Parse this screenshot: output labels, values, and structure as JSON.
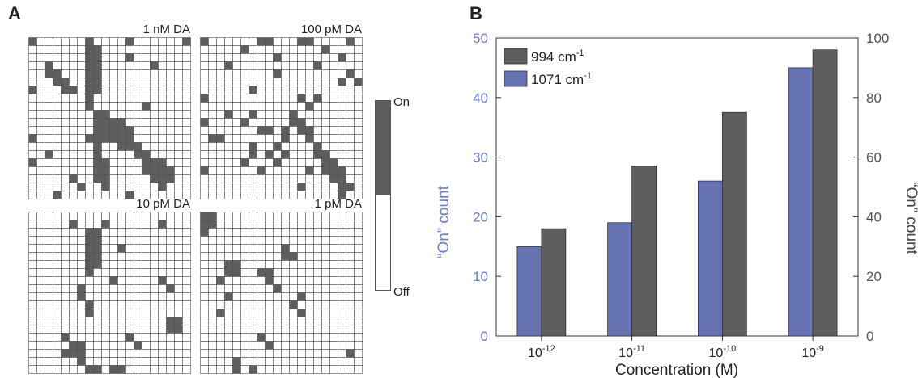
{
  "panel_a": {
    "letter": "A",
    "colorbar": {
      "on_label": "On",
      "off_label": "Off",
      "on_color": "#5e5e5e",
      "off_color": "#ffffff"
    },
    "grids": [
      {
        "title": "1 nM DA",
        "on_cells": [
          [
            0,
            0
          ],
          [
            0,
            7
          ],
          [
            0,
            12
          ],
          [
            0,
            19
          ],
          [
            1,
            7
          ],
          [
            1,
            8
          ],
          [
            2,
            7
          ],
          [
            2,
            8
          ],
          [
            2,
            12
          ],
          [
            3,
            2
          ],
          [
            3,
            7
          ],
          [
            3,
            8
          ],
          [
            3,
            15
          ],
          [
            4,
            2
          ],
          [
            4,
            3
          ],
          [
            4,
            7
          ],
          [
            4,
            8
          ],
          [
            5,
            3
          ],
          [
            5,
            4
          ],
          [
            5,
            7
          ],
          [
            5,
            8
          ],
          [
            6,
            0
          ],
          [
            6,
            4
          ],
          [
            6,
            5
          ],
          [
            6,
            7
          ],
          [
            6,
            8
          ],
          [
            7,
            7
          ],
          [
            8,
            7
          ],
          [
            8,
            14
          ],
          [
            9,
            8
          ],
          [
            9,
            9
          ],
          [
            10,
            8
          ],
          [
            10,
            9
          ],
          [
            10,
            10
          ],
          [
            10,
            11
          ],
          [
            11,
            8
          ],
          [
            11,
            9
          ],
          [
            11,
            10
          ],
          [
            11,
            11
          ],
          [
            11,
            12
          ],
          [
            12,
            0
          ],
          [
            12,
            7
          ],
          [
            12,
            8
          ],
          [
            12,
            9
          ],
          [
            12,
            10
          ],
          [
            12,
            11
          ],
          [
            12,
            12
          ],
          [
            13,
            8
          ],
          [
            13,
            11
          ],
          [
            13,
            12
          ],
          [
            13,
            13
          ],
          [
            14,
            2
          ],
          [
            14,
            8
          ],
          [
            14,
            13
          ],
          [
            14,
            14
          ],
          [
            15,
            0
          ],
          [
            15,
            8
          ],
          [
            15,
            9
          ],
          [
            15,
            14
          ],
          [
            15,
            15
          ],
          [
            15,
            16
          ],
          [
            16,
            8
          ],
          [
            16,
            9
          ],
          [
            16,
            14
          ],
          [
            16,
            15
          ],
          [
            16,
            16
          ],
          [
            16,
            17
          ],
          [
            17,
            5
          ],
          [
            17,
            8
          ],
          [
            17,
            9
          ],
          [
            17,
            15
          ],
          [
            17,
            16
          ],
          [
            17,
            17
          ],
          [
            18,
            6
          ],
          [
            18,
            9
          ],
          [
            18,
            16
          ],
          [
            19,
            3
          ],
          [
            19,
            12
          ]
        ]
      },
      {
        "title": "100 pM DA",
        "on_cells": [
          [
            0,
            0
          ],
          [
            0,
            7
          ],
          [
            0,
            8
          ],
          [
            0,
            12
          ],
          [
            0,
            13
          ],
          [
            0,
            18
          ],
          [
            1,
            5
          ],
          [
            1,
            15
          ],
          [
            2,
            9
          ],
          [
            2,
            17
          ],
          [
            3,
            3
          ],
          [
            3,
            14
          ],
          [
            4,
            9
          ],
          [
            4,
            18
          ],
          [
            5,
            17
          ],
          [
            5,
            19
          ],
          [
            6,
            6
          ],
          [
            7,
            0
          ],
          [
            7,
            12
          ],
          [
            7,
            14
          ],
          [
            8,
            13
          ],
          [
            9,
            3
          ],
          [
            9,
            6
          ],
          [
            9,
            11
          ],
          [
            10,
            0
          ],
          [
            10,
            5
          ],
          [
            10,
            11
          ],
          [
            10,
            12
          ],
          [
            11,
            7
          ],
          [
            11,
            8
          ],
          [
            11,
            10
          ],
          [
            11,
            12
          ],
          [
            11,
            13
          ],
          [
            12,
            1
          ],
          [
            12,
            2
          ],
          [
            12,
            10
          ],
          [
            12,
            13
          ],
          [
            13,
            6
          ],
          [
            13,
            9
          ],
          [
            13,
            14
          ],
          [
            14,
            6
          ],
          [
            14,
            8
          ],
          [
            14,
            10
          ],
          [
            14,
            14
          ],
          [
            14,
            15
          ],
          [
            15,
            5
          ],
          [
            15,
            9
          ],
          [
            15,
            15
          ],
          [
            15,
            16
          ],
          [
            16,
            0
          ],
          [
            16,
            7
          ],
          [
            16,
            13
          ],
          [
            16,
            15
          ],
          [
            16,
            16
          ],
          [
            16,
            17
          ],
          [
            17,
            16
          ],
          [
            17,
            17
          ],
          [
            18,
            12
          ],
          [
            18,
            17
          ],
          [
            18,
            18
          ],
          [
            19,
            17
          ]
        ]
      },
      {
        "title": "10 pM DA",
        "on_cells": [
          [
            1,
            5
          ],
          [
            1,
            9
          ],
          [
            1,
            16
          ],
          [
            2,
            7
          ],
          [
            2,
            8
          ],
          [
            3,
            7
          ],
          [
            3,
            8
          ],
          [
            4,
            7
          ],
          [
            4,
            8
          ],
          [
            4,
            11
          ],
          [
            5,
            7
          ],
          [
            5,
            8
          ],
          [
            6,
            7
          ],
          [
            6,
            8
          ],
          [
            7,
            7
          ],
          [
            8,
            10
          ],
          [
            8,
            16
          ],
          [
            9,
            6
          ],
          [
            9,
            17
          ],
          [
            10,
            6
          ],
          [
            11,
            7
          ],
          [
            12,
            7
          ],
          [
            13,
            17
          ],
          [
            13,
            18
          ],
          [
            14,
            17
          ],
          [
            14,
            18
          ],
          [
            15,
            4
          ],
          [
            15,
            12
          ],
          [
            16,
            5
          ],
          [
            16,
            6
          ],
          [
            16,
            13
          ],
          [
            17,
            4
          ],
          [
            17,
            5
          ],
          [
            17,
            6
          ],
          [
            18,
            6
          ],
          [
            19,
            7
          ],
          [
            19,
            8
          ],
          [
            19,
            10
          ],
          [
            19,
            11
          ],
          [
            20,
            7
          ],
          [
            20,
            8
          ],
          [
            20,
            9
          ],
          [
            20,
            10
          ],
          [
            20,
            11
          ],
          [
            20,
            17
          ],
          [
            20,
            18
          ],
          [
            21,
            7
          ],
          [
            21,
            8
          ],
          [
            21,
            9
          ],
          [
            21,
            10
          ],
          [
            21,
            11
          ],
          [
            21,
            16
          ],
          [
            21,
            17
          ],
          [
            21,
            18
          ],
          [
            22,
            8
          ],
          [
            22,
            9
          ]
        ]
      },
      {
        "title": "1 pM DA",
        "on_cells": [
          [
            0,
            0
          ],
          [
            0,
            1
          ],
          [
            1,
            0
          ],
          [
            1,
            1
          ],
          [
            2,
            0
          ],
          [
            4,
            10
          ],
          [
            5,
            10
          ],
          [
            5,
            11
          ],
          [
            6,
            3
          ],
          [
            6,
            4
          ],
          [
            7,
            3
          ],
          [
            7,
            4
          ],
          [
            7,
            7
          ],
          [
            7,
            8
          ],
          [
            8,
            2
          ],
          [
            8,
            8
          ],
          [
            9,
            9
          ],
          [
            10,
            3
          ],
          [
            10,
            12
          ],
          [
            11,
            11
          ],
          [
            12,
            2
          ],
          [
            12,
            12
          ],
          [
            15,
            7
          ],
          [
            16,
            8
          ],
          [
            17,
            18
          ],
          [
            18,
            4
          ],
          [
            19,
            4
          ],
          [
            19,
            6
          ],
          [
            20,
            0
          ],
          [
            20,
            1
          ]
        ]
      }
    ]
  },
  "panel_b": {
    "letter": "B",
    "legend_colors": {
      "gray": "#5e5e5e",
      "blue": "#6774b4",
      "left_axis_color": "#6c80c4"
    }
  },
  "chart_data": {
    "type": "bar",
    "categories": [
      "10-12",
      "10-11",
      "10-10",
      "10-9"
    ],
    "xlabel": "Concentration (M)",
    "ylabel_left": "“On” count",
    "ylabel_right": "“On” count",
    "ylim_left": [
      0,
      50
    ],
    "ylim_right": [
      0,
      100
    ],
    "yticks_left": [
      0,
      10,
      20,
      30,
      40,
      50
    ],
    "yticks_right": [
      0,
      20,
      40,
      60,
      80,
      100
    ],
    "legend_position": "top-left",
    "grid": false,
    "series": [
      {
        "name": "1071 cm-1",
        "axis": "left",
        "color": "#6774b4",
        "values": [
          15,
          19,
          26,
          45
        ]
      },
      {
        "name": "994 cm-1",
        "axis": "right",
        "color": "#5e5e5e",
        "values": [
          36,
          57,
          75,
          96
        ]
      }
    ]
  }
}
